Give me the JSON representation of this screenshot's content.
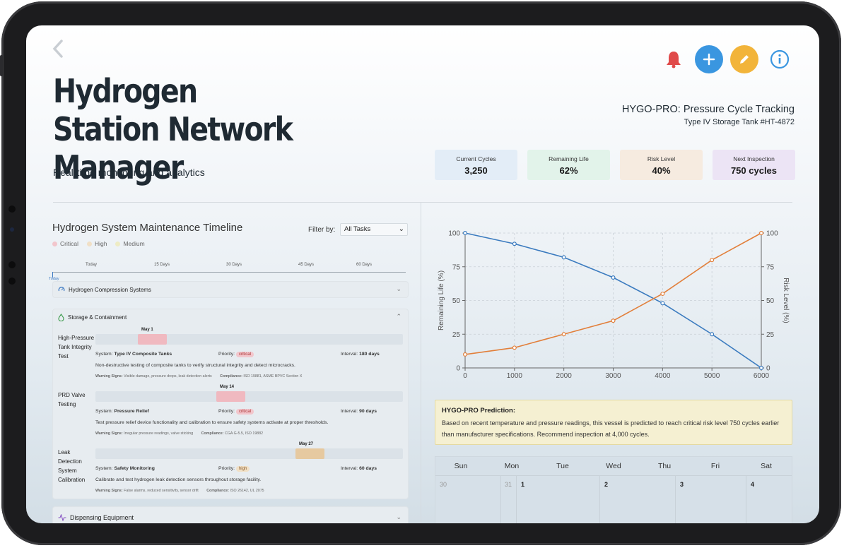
{
  "header": {
    "title": "Hydrogen Station Network Manager",
    "subtitle": "Real-time monitoring and analytics",
    "icons": [
      "back-icon",
      "bell-icon",
      "plus-icon",
      "pencil-icon",
      "info-icon"
    ]
  },
  "app": {
    "title": "HYGO-PRO: Pressure Cycle Tracking",
    "asset": "Type IV Storage Tank #HT-4872"
  },
  "stats": [
    {
      "label": "Current Cycles",
      "value": "3,250",
      "color": "#e3edf7"
    },
    {
      "label": "Remaining Life",
      "value": "62%",
      "color": "#e2f3ea"
    },
    {
      "label": "Risk Level",
      "value": "40%",
      "color": "#f6ebe0"
    },
    {
      "label": "Next Inspection",
      "value": "750 cycles",
      "color": "#ece4f5"
    }
  ],
  "maintenance": {
    "title": "Hydrogen System Maintenance Timeline",
    "filter_label": "Filter by:",
    "filter_value": "All Tasks",
    "legend": [
      {
        "label": "Critical",
        "color": "#f2c6cc"
      },
      {
        "label": "High",
        "color": "#f1e0c6"
      },
      {
        "label": "Medium",
        "color": "#eeecc4"
      }
    ],
    "timeline_labels": [
      "Today",
      "15 Days",
      "30 Days",
      "45 Days",
      "60 Days"
    ],
    "today_marker": "Today",
    "categories": [
      {
        "name": "Hydrogen Compression Systems",
        "icon": "gauge-icon"
      },
      {
        "name": "Storage & Containment",
        "icon": "droplet-icon",
        "tasks": [
          {
            "name": "High-Pressure Tank Integrity Test",
            "date": "May 1",
            "bar_color": "#f0b9c0",
            "system_label": "System:",
            "system": "Type IV Composite Tanks",
            "priority_label": "Priority:",
            "priority": "critical",
            "interval_label": "Interval:",
            "interval": "180 days",
            "description": "Non-destructive testing of composite tanks to verify structural integrity and detect microcracks.",
            "warning_label": "Warning Signs:",
            "warning": "Visible damage, pressure drops, leak detection alerts",
            "compliance_label": "Compliance:",
            "compliance": "ISO 19881, ASME BPVC Section X"
          },
          {
            "name": "PRD Valve Testing",
            "date": "May 14",
            "bar_color": "#f0b9c0",
            "system_label": "System:",
            "system": "Pressure Relief",
            "priority_label": "Priority:",
            "priority": "critical",
            "interval_label": "Interval:",
            "interval": "90 days",
            "description": "Test pressure relief device functionality and calibration to ensure safety systems activate at proper thresholds.",
            "warning_label": "Warning Signs:",
            "warning": "Irregular pressure readings, valve sticking",
            "compliance_label": "Compliance:",
            "compliance": "CGA G-5.5, ISO 19882"
          },
          {
            "name": "Leak Detection System Calibration",
            "date": "May 27",
            "bar_color": "#e6c9a0",
            "system_label": "System:",
            "system": "Safety Monitoring",
            "priority_label": "Priority:",
            "priority": "high",
            "interval_label": "Interval:",
            "interval": "60 days",
            "description": "Calibrate and test hydrogen leak detection sensors throughout storage facility.",
            "warning_label": "Warning Signs:",
            "warning": "False alarms, reduced sensitivity, sensor drift",
            "compliance_label": "Compliance:",
            "compliance": "ISO 26142, UL 2075"
          }
        ]
      },
      {
        "name": "Dispensing Equipment",
        "icon": "pulse-icon"
      }
    ]
  },
  "chart_data": {
    "type": "line",
    "x": [
      0,
      1000,
      2000,
      3000,
      4000,
      5000,
      6000
    ],
    "xlim": [
      0,
      6000
    ],
    "xticks": [
      "0",
      "1000",
      "2000",
      "3000",
      "4000",
      "5000",
      "6000"
    ],
    "ylabel": "Remaining Life (%)",
    "y2label": "Risk Level (%)",
    "ylim": [
      0,
      100
    ],
    "yticks": [
      "0",
      "25",
      "50",
      "75",
      "100"
    ],
    "grid": true,
    "series": [
      {
        "values": [
          100,
          92,
          82,
          67,
          48,
          25,
          0
        ],
        "color": "#3b7bbf",
        "axis": "left"
      },
      {
        "values": [
          10,
          15,
          25,
          35,
          55,
          80,
          100
        ],
        "color": "#e27f3a",
        "axis": "right"
      }
    ]
  },
  "prediction": {
    "heading": "HYGO-PRO Prediction:",
    "text": "Based on recent temperature and pressure readings, this vessel is predicted to reach critical risk level 750 cycles earlier than manufacturer specifications. Recommend inspection at 4,000 cycles."
  },
  "calendar": {
    "days": [
      "Sun",
      "Mon",
      "Tue",
      "Wed",
      "Thu",
      "Fri",
      "Sat"
    ],
    "first_row": [
      "30",
      "31",
      "1",
      "2",
      "3",
      "4"
    ]
  }
}
